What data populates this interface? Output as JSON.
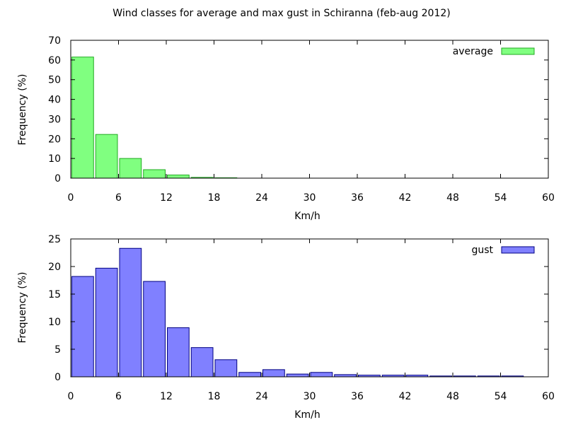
{
  "title": "Wind classes for average and max gust in Schiranna (feb-aug 2012)",
  "chart_data": [
    {
      "type": "bar",
      "xlabel": "Km/h",
      "ylabel": "Frequency (%)",
      "xlim": [
        0,
        60
      ],
      "ylim": [
        0,
        70
      ],
      "xticks": [
        0,
        6,
        12,
        18,
        24,
        30,
        36,
        42,
        48,
        54,
        60
      ],
      "yticks": [
        0,
        10,
        20,
        30,
        40,
        50,
        60,
        70
      ],
      "grid": false,
      "legend_position": "top-right",
      "bin_width": 3,
      "series": [
        {
          "name": "average",
          "color": "#80ff80",
          "stroke": "#22aa22",
          "x": [
            0,
            3,
            6,
            9,
            12,
            15,
            18
          ],
          "values": [
            61.5,
            22.2,
            10.0,
            4.3,
            1.6,
            0.4,
            0.2
          ]
        }
      ]
    },
    {
      "type": "bar",
      "xlabel": "Km/h",
      "ylabel": "Frequency (%)",
      "xlim": [
        0,
        60
      ],
      "ylim": [
        0,
        25
      ],
      "xticks": [
        0,
        6,
        12,
        18,
        24,
        30,
        36,
        42,
        48,
        54,
        60
      ],
      "yticks": [
        0,
        5,
        10,
        15,
        20,
        25
      ],
      "grid": false,
      "legend_position": "top-right",
      "bin_width": 3,
      "series": [
        {
          "name": "gust",
          "color": "#8080ff",
          "stroke": "#000080",
          "x": [
            0,
            3,
            6,
            9,
            12,
            15,
            18,
            21,
            24,
            27,
            30,
            33,
            36,
            39,
            42,
            45,
            48,
            51,
            54
          ],
          "values": [
            18.2,
            19.7,
            23.3,
            17.3,
            8.9,
            5.3,
            3.1,
            0.8,
            1.3,
            0.5,
            0.8,
            0.4,
            0.3,
            0.3,
            0.3,
            0.15,
            0.15,
            0.15,
            0.15
          ]
        }
      ]
    }
  ]
}
